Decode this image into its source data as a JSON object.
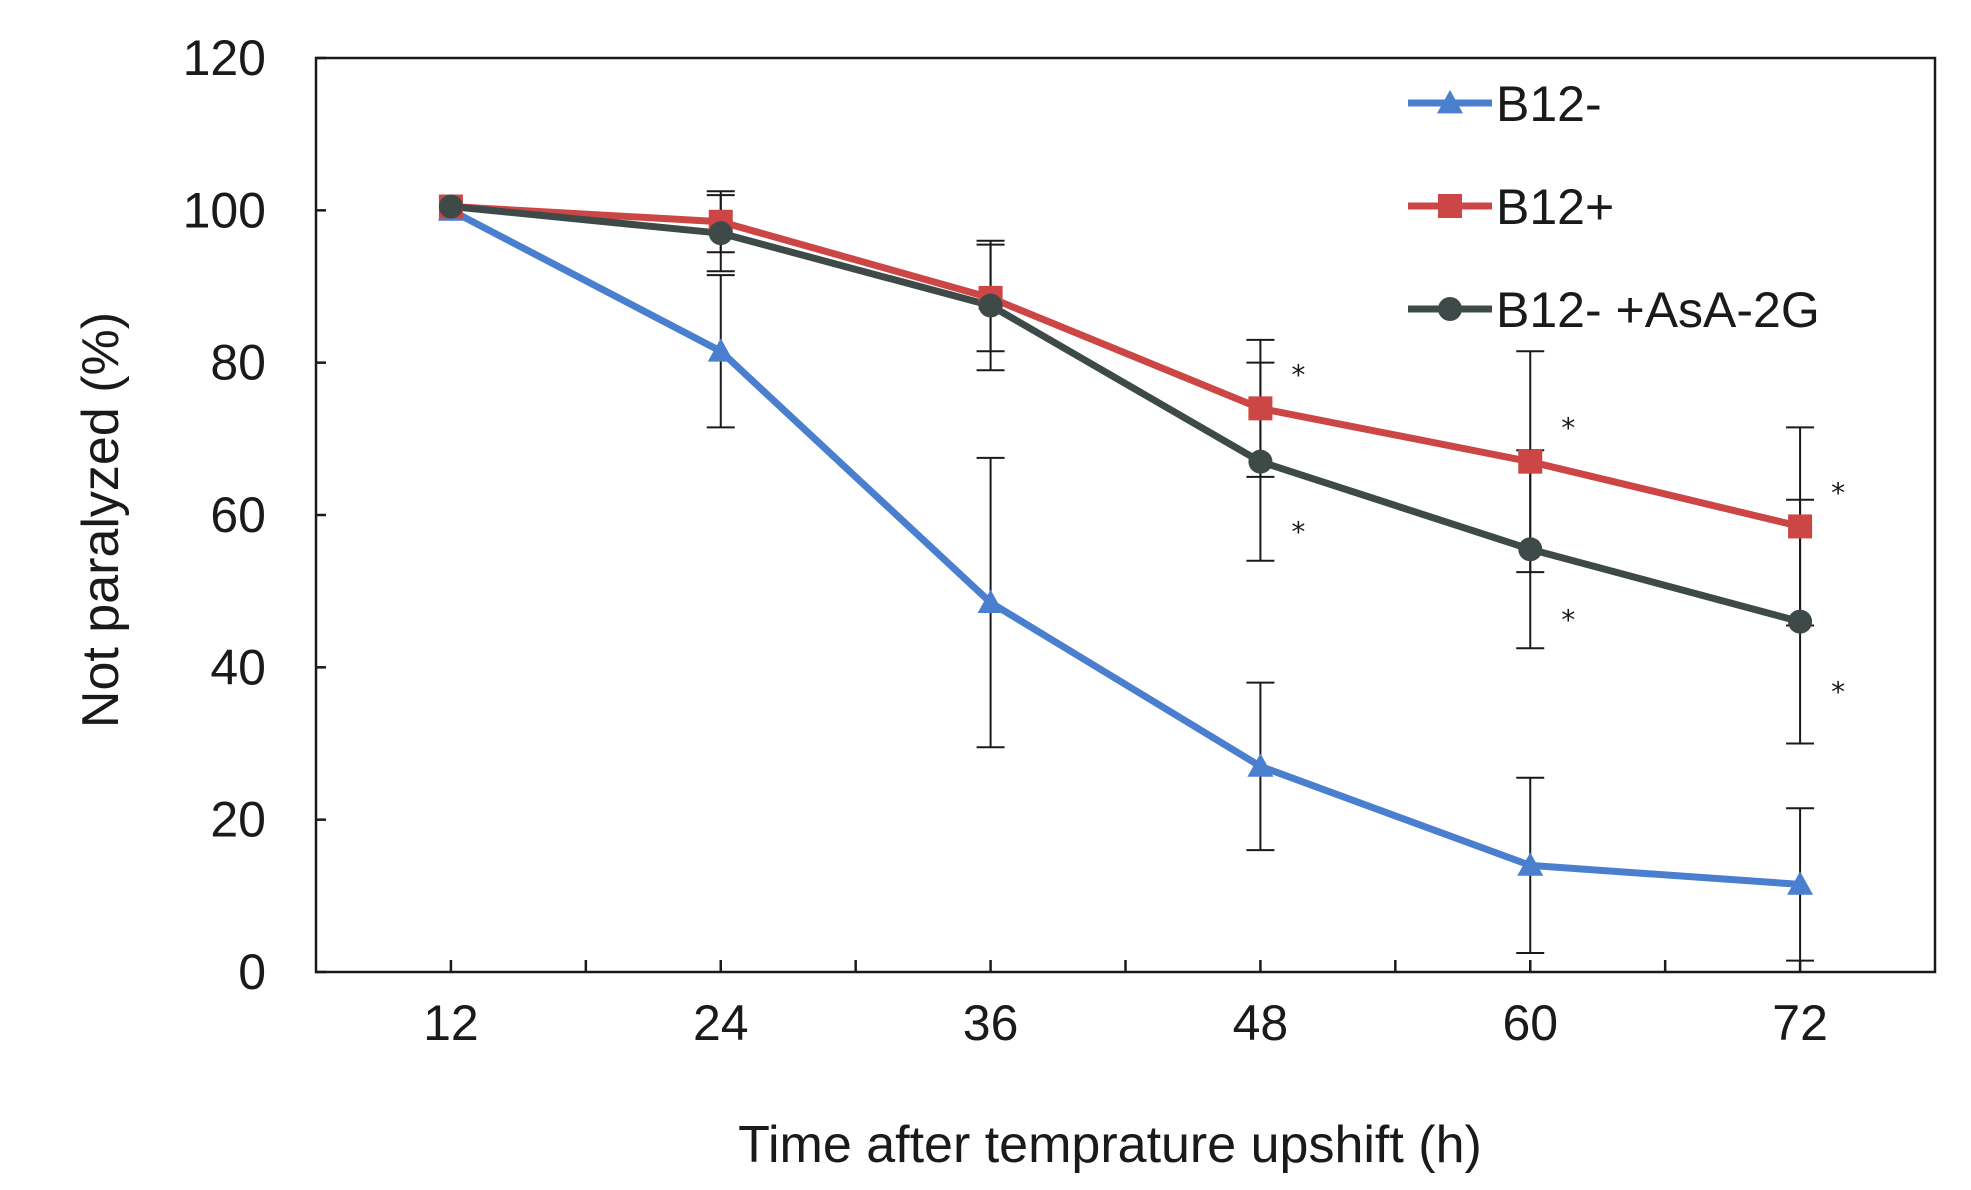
{
  "chart_data": {
    "type": "line",
    "title": "",
    "xlabel": "Time after temprature upshift (h)",
    "ylabel": "Not paralyzed (%)",
    "x": [
      12,
      24,
      36,
      48,
      60,
      72
    ],
    "xticks": [
      "12",
      "24",
      "36",
      "48",
      "60",
      "72"
    ],
    "xlim": [
      6,
      78
    ],
    "ylim": [
      0,
      120
    ],
    "yticks": [
      "0",
      "20",
      "40",
      "60",
      "80",
      "100",
      "120"
    ],
    "grid": false,
    "legend_position": "top-right",
    "series": [
      {
        "name": "B12-",
        "color": "#4a7fd0",
        "marker": "triangle",
        "values": [
          100,
          81.5,
          48.5,
          27,
          14,
          11.5
        ],
        "errors": [
          0,
          10,
          19,
          11,
          11.5,
          10
        ],
        "significance": [
          "",
          "",
          "",
          "",
          "",
          ""
        ]
      },
      {
        "name": "B12+",
        "color": "#cc4646",
        "marker": "square",
        "values": [
          100.5,
          98.5,
          88.5,
          74,
          67,
          58.5
        ],
        "errors": [
          0,
          4,
          7,
          9,
          14.5,
          13
        ],
        "significance": [
          "",
          "",
          "",
          "*",
          "*",
          "*"
        ]
      },
      {
        "name": "B12- +AsA-2G",
        "color": "#3e4a48",
        "marker": "circle",
        "values": [
          100.5,
          97,
          87.5,
          67,
          55.5,
          46
        ],
        "errors": [
          0,
          5,
          8.5,
          13,
          13,
          16
        ],
        "significance": [
          "",
          "",
          "",
          "*",
          "*",
          "*"
        ]
      }
    ]
  }
}
